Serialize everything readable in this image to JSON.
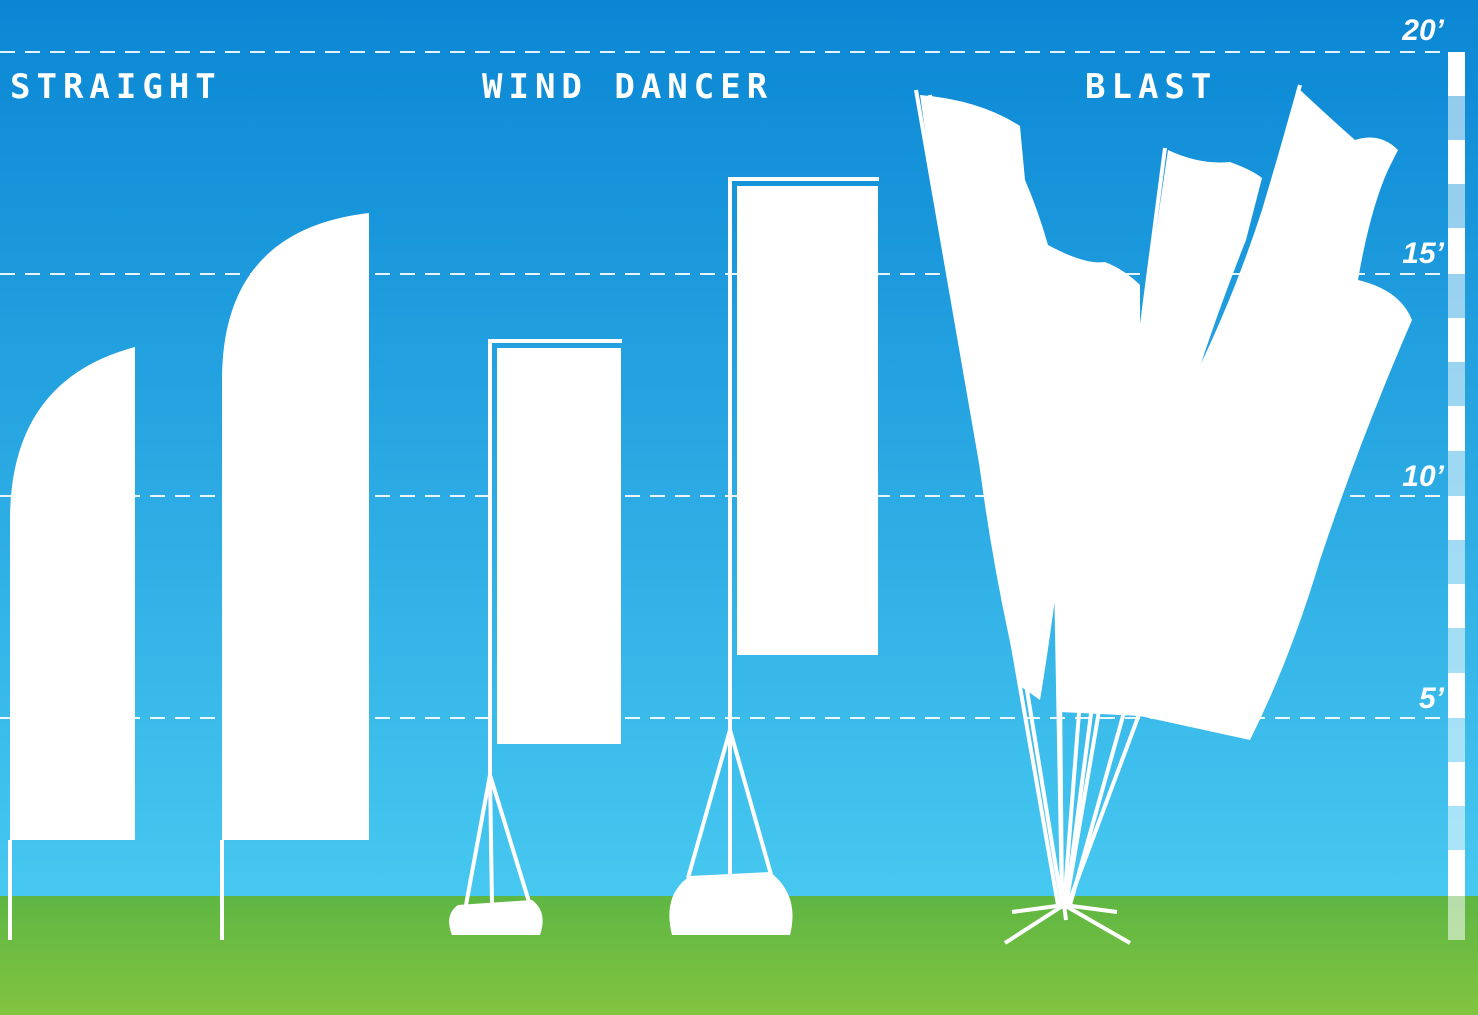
{
  "categories": [
    {
      "name": "STRAIGHT"
    },
    {
      "name": "WIND DANCER"
    },
    {
      "name": "BLAST"
    }
  ],
  "height_scale": {
    "unit": "feet",
    "marks": [
      {
        "feet": 20,
        "label": "20’"
      },
      {
        "feet": 15,
        "label": "15’"
      },
      {
        "feet": 10,
        "label": "10’"
      },
      {
        "feet": 5,
        "label": "5’"
      }
    ]
  },
  "colors": {
    "sky_top": "#0a86d4",
    "sky_bottom": "#47c8f0",
    "ground_top": "#5eb643",
    "ground_bottom": "#82c43f",
    "flag": "#ffffff"
  }
}
